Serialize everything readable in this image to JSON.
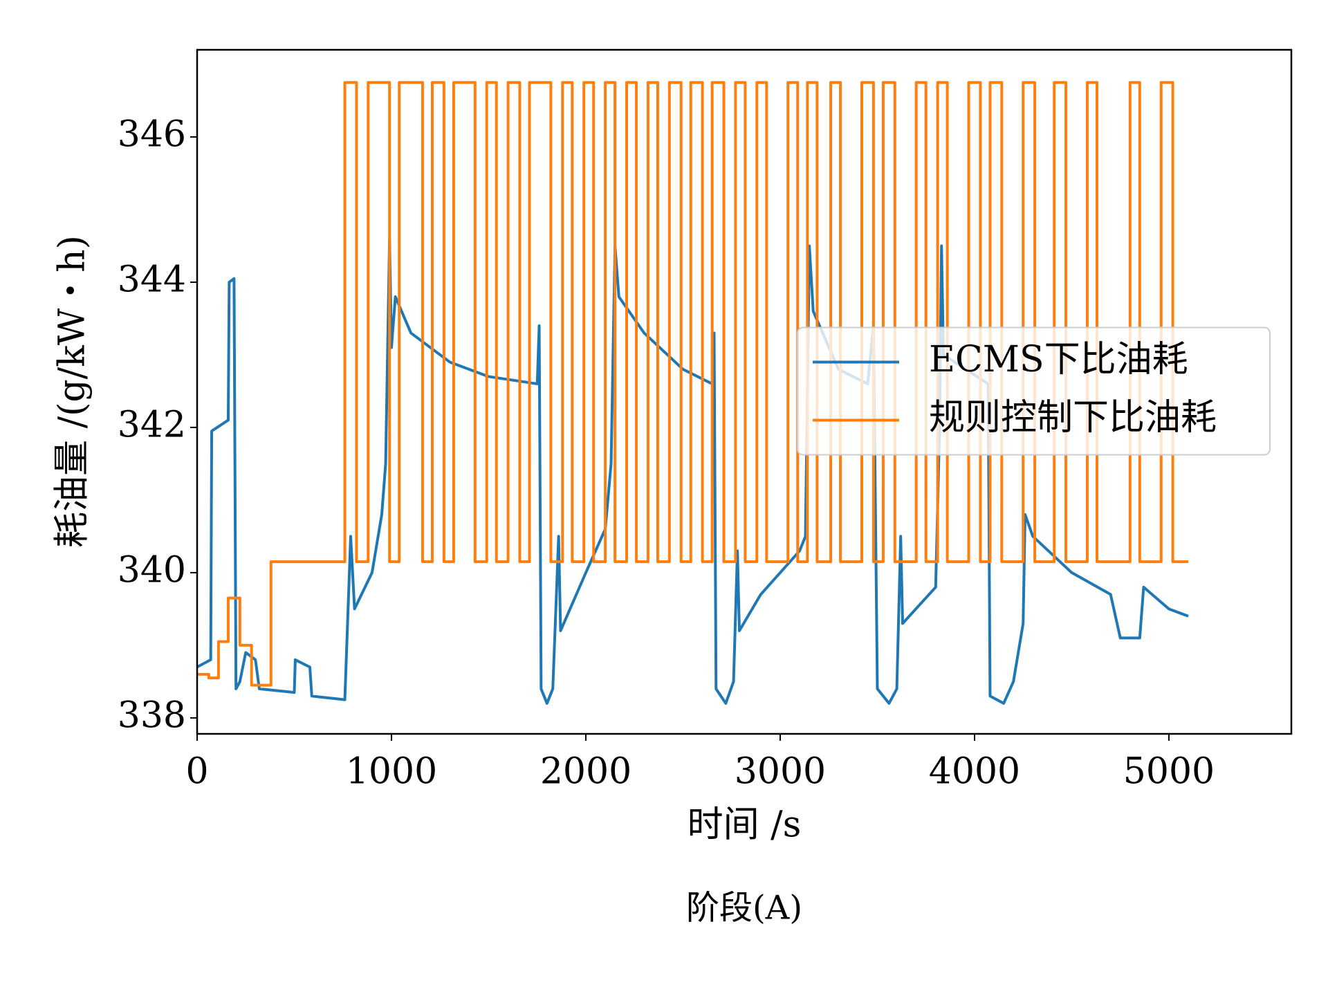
{
  "chart_data": {
    "type": "line",
    "ylabel": "耗油量 /(g/kW・h)",
    "xlabel": "时间 /s",
    "caption": "阶段(A)",
    "xlim": [
      0,
      5630
    ],
    "ylim": [
      337.78,
      347.2
    ],
    "xticks": [
      0,
      1000,
      2000,
      3000,
      4000,
      5000
    ],
    "yticks": [
      338,
      340,
      342,
      344,
      346
    ],
    "legend": "center right",
    "series": [
      {
        "name": "ECMS下比油耗",
        "color": "#1f77b4",
        "x": [
          0,
          70,
          75,
          160,
          165,
          190,
          200,
          220,
          250,
          300,
          320,
          500,
          505,
          580,
          590,
          760,
          790,
          810,
          900,
          950,
          970,
          990,
          1000,
          1020,
          1100,
          1300,
          1500,
          1750,
          1760,
          1770,
          1800,
          1830,
          1860,
          1870,
          2000,
          2100,
          2130,
          2150,
          2170,
          2300,
          2500,
          2650,
          2660,
          2670,
          2720,
          2760,
          2780,
          2790,
          2900,
          3100,
          3130,
          3150,
          3170,
          3300,
          3450,
          3480,
          3500,
          3560,
          3600,
          3620,
          3630,
          3800,
          3820,
          3830,
          3840,
          4070,
          4080,
          4150,
          4200,
          4250,
          4260,
          4300,
          4500,
          4700,
          4750,
          4850,
          4870,
          5000,
          5100
        ],
        "values": [
          338.7,
          338.8,
          341.95,
          342.1,
          344.0,
          344.05,
          338.4,
          338.5,
          338.9,
          338.8,
          338.4,
          338.35,
          338.8,
          338.7,
          338.3,
          338.25,
          340.5,
          339.5,
          340.0,
          340.8,
          341.5,
          344.6,
          343.1,
          343.8,
          343.3,
          342.9,
          342.7,
          342.6,
          343.4,
          338.4,
          338.2,
          338.4,
          340.5,
          339.2,
          340.0,
          340.6,
          341.5,
          344.5,
          343.8,
          343.3,
          342.8,
          342.6,
          343.3,
          338.4,
          338.2,
          338.5,
          340.3,
          339.2,
          339.7,
          340.3,
          340.5,
          344.5,
          343.6,
          342.8,
          342.6,
          343.4,
          338.4,
          338.2,
          338.4,
          340.5,
          339.3,
          339.8,
          342.0,
          344.5,
          343.0,
          342.6,
          338.3,
          338.2,
          338.5,
          339.3,
          340.8,
          340.5,
          340.0,
          339.7,
          339.1,
          339.1,
          339.8,
          339.5,
          339.4
        ]
      },
      {
        "name": "规则控制下比油耗",
        "color": "#ff7f0e",
        "x": [
          0,
          60,
          60,
          110,
          110,
          160,
          160,
          220,
          220,
          280,
          280,
          380,
          380,
          760,
          760,
          820,
          820,
          880,
          880,
          990,
          990,
          1040,
          1040,
          1160,
          1160,
          1210,
          1210,
          1270,
          1270,
          1320,
          1320,
          1430,
          1430,
          1490,
          1490,
          1540,
          1540,
          1600,
          1600,
          1660,
          1660,
          1710,
          1710,
          1820,
          1820,
          1880,
          1880,
          1930,
          1930,
          1990,
          1990,
          2040,
          2040,
          2100,
          2100,
          2150,
          2150,
          2210,
          2210,
          2260,
          2260,
          2320,
          2320,
          2370,
          2370,
          2430,
          2430,
          2490,
          2490,
          2540,
          2540,
          2600,
          2600,
          2650,
          2650,
          2710,
          2710,
          2770,
          2770,
          2820,
          2820,
          2880,
          2880,
          2930,
          2930,
          3040,
          3040,
          3090,
          3090,
          3140,
          3140,
          3190,
          3190,
          3260,
          3260,
          3310,
          3310,
          3420,
          3420,
          3480,
          3480,
          3530,
          3530,
          3590,
          3590,
          3700,
          3700,
          3750,
          3750,
          3810,
          3810,
          3860,
          3860,
          3970,
          3970,
          4030,
          4030,
          4080,
          4080,
          4140,
          4140,
          4250,
          4250,
          4310,
          4310,
          4410,
          4410,
          4470,
          4470,
          4580,
          4580,
          4630,
          4630,
          4800,
          4800,
          4850,
          4850,
          4960,
          4960,
          5020,
          5020,
          5100
        ],
        "values": [
          338.6,
          338.6,
          338.55,
          338.55,
          339.05,
          339.05,
          339.65,
          339.65,
          339.0,
          339.0,
          338.45,
          338.45,
          340.15,
          340.15,
          346.75,
          346.75,
          340.15,
          340.15,
          346.75,
          346.75,
          340.15,
          340.15,
          346.75,
          346.75,
          340.15,
          340.15,
          346.75,
          346.75,
          340.15,
          340.15,
          346.75,
          346.75,
          340.15,
          340.15,
          346.75,
          346.75,
          340.15,
          340.15,
          346.75,
          346.75,
          340.15,
          340.15,
          346.75,
          346.75,
          340.15,
          340.15,
          346.75,
          346.75,
          340.15,
          340.15,
          346.75,
          346.75,
          340.15,
          340.15,
          346.75,
          346.75,
          340.15,
          340.15,
          346.75,
          346.75,
          340.15,
          340.15,
          346.75,
          346.75,
          340.15,
          340.15,
          346.75,
          346.75,
          340.15,
          340.15,
          346.75,
          346.75,
          340.15,
          340.15,
          346.75,
          346.75,
          340.15,
          340.15,
          346.75,
          346.75,
          340.15,
          340.15,
          346.75,
          346.75,
          340.15,
          340.15,
          346.75,
          346.75,
          340.15,
          340.15,
          346.75,
          346.75,
          340.15,
          340.15,
          346.75,
          346.75,
          340.15,
          340.15,
          346.75,
          346.75,
          340.15,
          340.15,
          346.75,
          346.75,
          340.15,
          340.15,
          346.75,
          346.75,
          340.15,
          340.15,
          346.75,
          346.75,
          340.15,
          340.15,
          346.75,
          346.75,
          340.15,
          340.15,
          346.75,
          346.75,
          340.15,
          340.15,
          346.75,
          346.75,
          340.15,
          340.15,
          346.75,
          346.75,
          340.15,
          340.15,
          346.75,
          346.75,
          340.15,
          340.15,
          346.75,
          346.75,
          340.15,
          340.15,
          346.75,
          346.75,
          340.15,
          340.15
        ]
      }
    ]
  }
}
